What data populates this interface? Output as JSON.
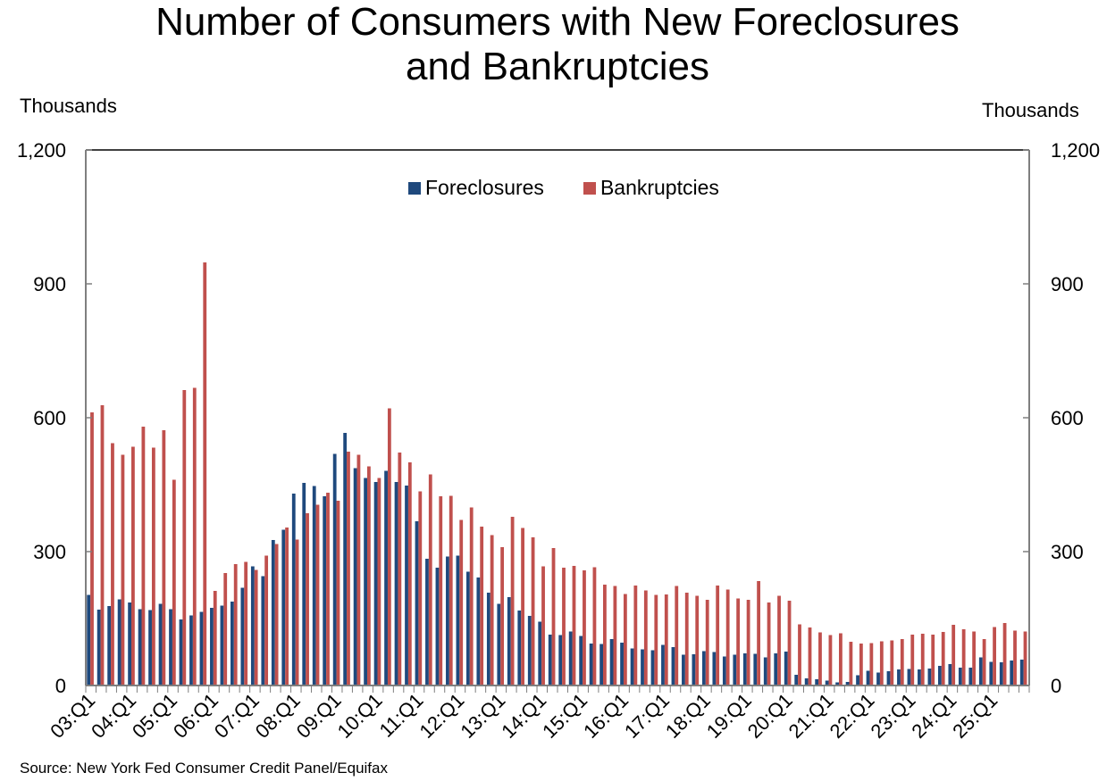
{
  "chart_data": {
    "type": "bar",
    "title": "Number of Consumers with New Foreclosures and Bankruptcies",
    "title_lines": [
      "Number of Consumers with New Foreclosures",
      "and Bankruptcies"
    ],
    "ylabel_left": "Thousands",
    "ylabel_right": "Thousands",
    "ylim": [
      0,
      1200
    ],
    "yticks": [
      0,
      300,
      600,
      900,
      1200
    ],
    "ytick_labels": [
      "0",
      "300",
      "600",
      "900",
      "1,200"
    ],
    "legend_position": "top-center",
    "grid": false,
    "colors": {
      "Foreclosures": "#1f497d",
      "Bankruptcies": "#c0504d"
    },
    "xtick_labels": [
      "03:Q1",
      "04:Q1",
      "05:Q1",
      "06:Q1",
      "07:Q1",
      "08:Q1",
      "09:Q1",
      "10:Q1",
      "11:Q1",
      "12:Q1",
      "13:Q1",
      "14:Q1",
      "15:Q1",
      "16:Q1",
      "17:Q1",
      "18:Q1",
      "19:Q1",
      "20:Q1",
      "21:Q1",
      "22:Q1",
      "23:Q1",
      "24:Q1",
      "25:Q1"
    ],
    "categories": [
      "03:Q1",
      "03:Q2",
      "03:Q3",
      "03:Q4",
      "04:Q1",
      "04:Q2",
      "04:Q3",
      "04:Q4",
      "05:Q1",
      "05:Q2",
      "05:Q3",
      "05:Q4",
      "06:Q1",
      "06:Q2",
      "06:Q3",
      "06:Q4",
      "07:Q1",
      "07:Q2",
      "07:Q3",
      "07:Q4",
      "08:Q1",
      "08:Q2",
      "08:Q3",
      "08:Q4",
      "09:Q1",
      "09:Q2",
      "09:Q3",
      "09:Q4",
      "10:Q1",
      "10:Q2",
      "10:Q3",
      "10:Q4",
      "11:Q1",
      "11:Q2",
      "11:Q3",
      "11:Q4",
      "12:Q1",
      "12:Q2",
      "12:Q3",
      "12:Q4",
      "13:Q1",
      "13:Q2",
      "13:Q3",
      "13:Q4",
      "14:Q1",
      "14:Q2",
      "14:Q3",
      "14:Q4",
      "15:Q1",
      "15:Q2",
      "15:Q3",
      "15:Q4",
      "16:Q1",
      "16:Q2",
      "16:Q3",
      "16:Q4",
      "17:Q1",
      "17:Q2",
      "17:Q3",
      "17:Q4",
      "18:Q1",
      "18:Q2",
      "18:Q3",
      "18:Q4",
      "19:Q1",
      "19:Q2",
      "19:Q3",
      "19:Q4",
      "20:Q1",
      "20:Q2",
      "20:Q3",
      "20:Q4",
      "21:Q1",
      "21:Q2",
      "21:Q3",
      "21:Q4",
      "22:Q1",
      "22:Q2",
      "22:Q3",
      "22:Q4",
      "23:Q1",
      "23:Q2",
      "23:Q3",
      "23:Q4",
      "24:Q1",
      "24:Q2",
      "24:Q3",
      "24:Q4",
      "25:Q1",
      "25:Q2",
      "25:Q3",
      "25:Q4"
    ],
    "series": [
      {
        "name": "Foreclosures",
        "values": [
          203,
          170,
          178,
          193,
          186,
          171,
          169,
          183,
          171,
          148,
          157,
          165,
          174,
          179,
          188,
          219,
          267,
          245,
          326,
          349,
          430,
          454,
          447,
          424,
          519,
          566,
          487,
          465,
          456,
          481,
          456,
          448,
          368,
          284,
          264,
          289,
          291,
          255,
          242,
          208,
          183,
          198,
          168,
          156,
          143,
          114,
          113,
          121,
          111,
          94,
          93,
          104,
          96,
          83,
          81,
          79,
          91,
          86,
          69,
          70,
          77,
          75,
          65,
          69,
          72,
          71,
          63,
          72,
          76,
          24,
          16,
          14,
          11,
          7,
          8,
          23,
          33,
          29,
          32,
          36,
          37,
          36,
          38,
          44,
          48,
          40,
          40,
          63,
          53,
          52,
          56,
          58
        ]
      },
      {
        "name": "Bankruptcies",
        "values": [
          612,
          628,
          543,
          517,
          535,
          580,
          533,
          572,
          461,
          662,
          667,
          948,
          212,
          252,
          272,
          277,
          259,
          291,
          317,
          354,
          327,
          386,
          405,
          432,
          414,
          524,
          517,
          491,
          465,
          621,
          522,
          500,
          435,
          473,
          424,
          425,
          371,
          399,
          356,
          337,
          310,
          378,
          353,
          332,
          267,
          308,
          264,
          268,
          258,
          265,
          226,
          223,
          205,
          224,
          213,
          203,
          204,
          223,
          208,
          201,
          192,
          224,
          215,
          195,
          192,
          234,
          186,
          201,
          190,
          137,
          130,
          119,
          113,
          117,
          98,
          94,
          95,
          99,
          101,
          104,
          114,
          116,
          114,
          120,
          136,
          126,
          121,
          104,
          131,
          140,
          123,
          121
        ]
      }
    ]
  },
  "source": "Source: New York Fed Consumer Credit Panel/Equifax"
}
